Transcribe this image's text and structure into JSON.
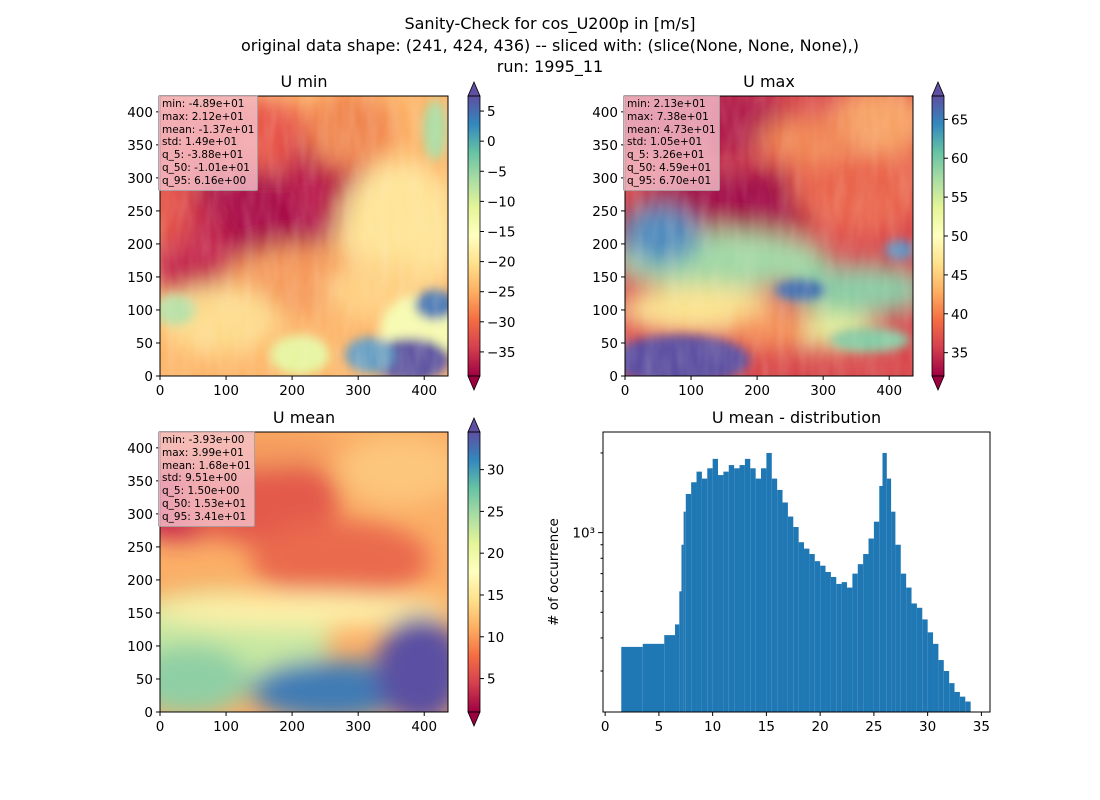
{
  "suptitle": [
    "Sanity-Check for cos_U200p in [m/s]",
    "original data shape: (241, 424, 436) -- sliced with: (slice(None, None, None),)",
    "run: 1995_11"
  ],
  "colors": {
    "histogram": "#1f77b4",
    "colormap_spectral": [
      "#9e0142",
      "#d53e4f",
      "#f46d43",
      "#fdae61",
      "#fee08b",
      "#ffffbf",
      "#e6f598",
      "#abdda4",
      "#66c2a5",
      "#3288bd",
      "#5e4fa2"
    ]
  },
  "chart_data": [
    {
      "type": "heatmap",
      "title": "U min",
      "colormap": "Spectral",
      "x_ticks": [
        "0",
        "100",
        "200",
        "300",
        "400"
      ],
      "y_ticks": [
        "0",
        "50",
        "100",
        "150",
        "200",
        "250",
        "300",
        "350",
        "400"
      ],
      "xlim": [
        0,
        436
      ],
      "ylim": [
        0,
        424
      ],
      "colorbar_range": [
        -39,
        7.5
      ],
      "colorbar_ticks": [
        "5",
        "0",
        "−5",
        "−10",
        "−15",
        "−20",
        "−25",
        "−30",
        "−35"
      ],
      "colorbar_tick_values": [
        5,
        0,
        -5,
        -10,
        -15,
        -20,
        -25,
        -30,
        -35
      ],
      "stats": [
        "min: -4.89e+01",
        "max: 2.12e+01",
        "mean: -1.37e+01",
        "std: 1.49e+01",
        "q_5: -3.88e+01",
        "q_50: -1.01e+01",
        "q_95: 6.16e+00"
      ]
    },
    {
      "type": "heatmap",
      "title": "U max",
      "colormap": "Spectral",
      "x_ticks": [
        "0",
        "100",
        "200",
        "300",
        "400"
      ],
      "y_ticks": [
        "0",
        "50",
        "100",
        "150",
        "200",
        "250",
        "300",
        "350",
        "400"
      ],
      "xlim": [
        0,
        436
      ],
      "ylim": [
        0,
        424
      ],
      "colorbar_range": [
        32,
        68
      ],
      "colorbar_ticks": [
        "65",
        "60",
        "55",
        "50",
        "45",
        "40",
        "35"
      ],
      "colorbar_tick_values": [
        65,
        60,
        55,
        50,
        45,
        40,
        35
      ],
      "stats": [
        "min: 2.13e+01",
        "max: 7.38e+01",
        "mean: 4.73e+01",
        "std: 1.05e+01",
        "q_5: 3.26e+01",
        "q_50: 4.59e+01",
        "q_95: 6.70e+01"
      ]
    },
    {
      "type": "heatmap",
      "title": "U mean",
      "colormap": "Spectral",
      "x_ticks": [
        "0",
        "100",
        "200",
        "300",
        "400"
      ],
      "y_ticks": [
        "0",
        "50",
        "100",
        "150",
        "200",
        "250",
        "300",
        "350",
        "400"
      ],
      "xlim": [
        0,
        436
      ],
      "ylim": [
        0,
        424
      ],
      "colorbar_range": [
        1,
        34.5
      ],
      "colorbar_ticks": [
        "30",
        "25",
        "20",
        "15",
        "10",
        "5"
      ],
      "colorbar_tick_values": [
        30,
        25,
        20,
        15,
        10,
        5
      ],
      "stats": [
        "min: -3.93e+00",
        "max: 3.99e+01",
        "mean: 1.68e+01",
        "std: 9.51e+00",
        "q_5: 1.50e+00",
        "q_50: 1.53e+01",
        "q_95: 3.41e+01"
      ]
    },
    {
      "type": "bar",
      "title": "U mean - distribution",
      "ylabel": "# of occurrence",
      "yscale": "log",
      "ylim": [
        210,
        2400
      ],
      "xlim": [
        -0.2,
        35.8
      ],
      "x_ticks": [
        "0",
        "5",
        "10",
        "15",
        "20",
        "25",
        "30",
        "35"
      ],
      "x_tick_values": [
        0,
        5,
        10,
        15,
        20,
        25,
        30,
        35
      ],
      "y_ticks": [
        "10³"
      ],
      "y_tick_values": [
        1000
      ],
      "bin_width": 0.2,
      "bins_start": [
        1.5,
        3.5,
        5.5,
        6.5,
        6.9,
        7.1,
        7.3,
        7.5,
        8.0,
        8.5,
        9.0,
        9.5,
        10.0,
        10.5,
        11.0,
        11.5,
        12.0,
        12.5,
        13.0,
        13.5,
        14.0,
        14.5,
        15.0,
        15.5,
        16.0,
        16.5,
        17.0,
        17.5,
        18.0,
        18.5,
        19.0,
        19.5,
        20.0,
        20.5,
        21.0,
        21.5,
        22.0,
        22.5,
        23.0,
        23.5,
        24.0,
        24.5,
        25.0,
        25.5,
        25.8,
        26.2,
        26.6,
        27.0,
        27.5,
        28.0,
        28.5,
        29.0,
        29.5,
        30.0,
        30.5,
        31.0,
        31.5,
        32.0,
        32.5,
        33.0,
        33.5,
        34.0
      ],
      "counts": [
        370,
        380,
        410,
        450,
        600,
        900,
        1200,
        1400,
        1550,
        1700,
        1600,
        1750,
        1900,
        1650,
        1700,
        1800,
        1750,
        1800,
        1900,
        1750,
        1600,
        1750,
        2000,
        1600,
        1450,
        1300,
        1150,
        1050,
        920,
        870,
        830,
        780,
        750,
        710,
        680,
        640,
        650,
        620,
        700,
        760,
        830,
        950,
        1100,
        1500,
        2000,
        1600,
        1200,
        900,
        700,
        620,
        540,
        520,
        470,
        420,
        380,
        330,
        300,
        270,
        250,
        240,
        230,
        0
      ]
    }
  ]
}
